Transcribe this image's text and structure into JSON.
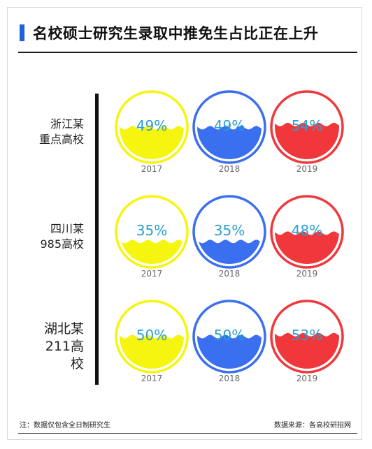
{
  "title": "名校硕士研究生录取中推免生占比正在上升",
  "chart_data": {
    "type": "liquid-gauge",
    "years": [
      "2017",
      "2018",
      "2019"
    ],
    "colors": {
      "2017": "#f5f50f",
      "2018": "#3a6ff0",
      "2019": "#f0383c"
    },
    "text_color": "#2a9fd0",
    "rows": [
      {
        "label_line1": "浙江某",
        "label_line2": "重点高校",
        "values": [
          49,
          49,
          54
        ],
        "value_labels": [
          "49%",
          "49%",
          "54%"
        ]
      },
      {
        "label_line1": "四川某",
        "label_line2": "985高校",
        "values": [
          35,
          35,
          48
        ],
        "value_labels": [
          "35%",
          "35%",
          "48%"
        ]
      },
      {
        "label_line1": "湖北某",
        "label_line2": "211高校",
        "values": [
          50,
          50,
          53
        ],
        "value_labels": [
          "50%",
          "50%",
          "53%"
        ]
      }
    ]
  },
  "footer": {
    "note": "注：数据仅包含全日制研究生",
    "source": "数据来源：各高校研招网"
  }
}
